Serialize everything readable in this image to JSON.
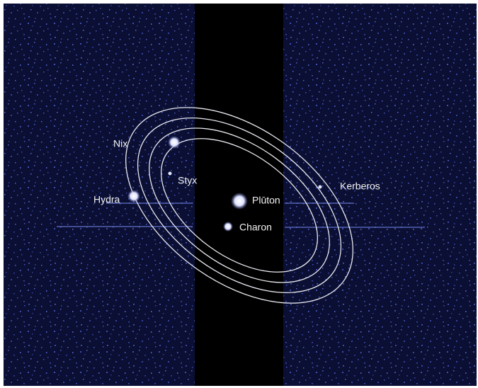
{
  "labels": {
    "nix": "Nix",
    "styx": "Styx",
    "hydra": "Hydra",
    "pluton": "Plūton",
    "charon": "Charon",
    "kerberos": "Kerberos"
  }
}
